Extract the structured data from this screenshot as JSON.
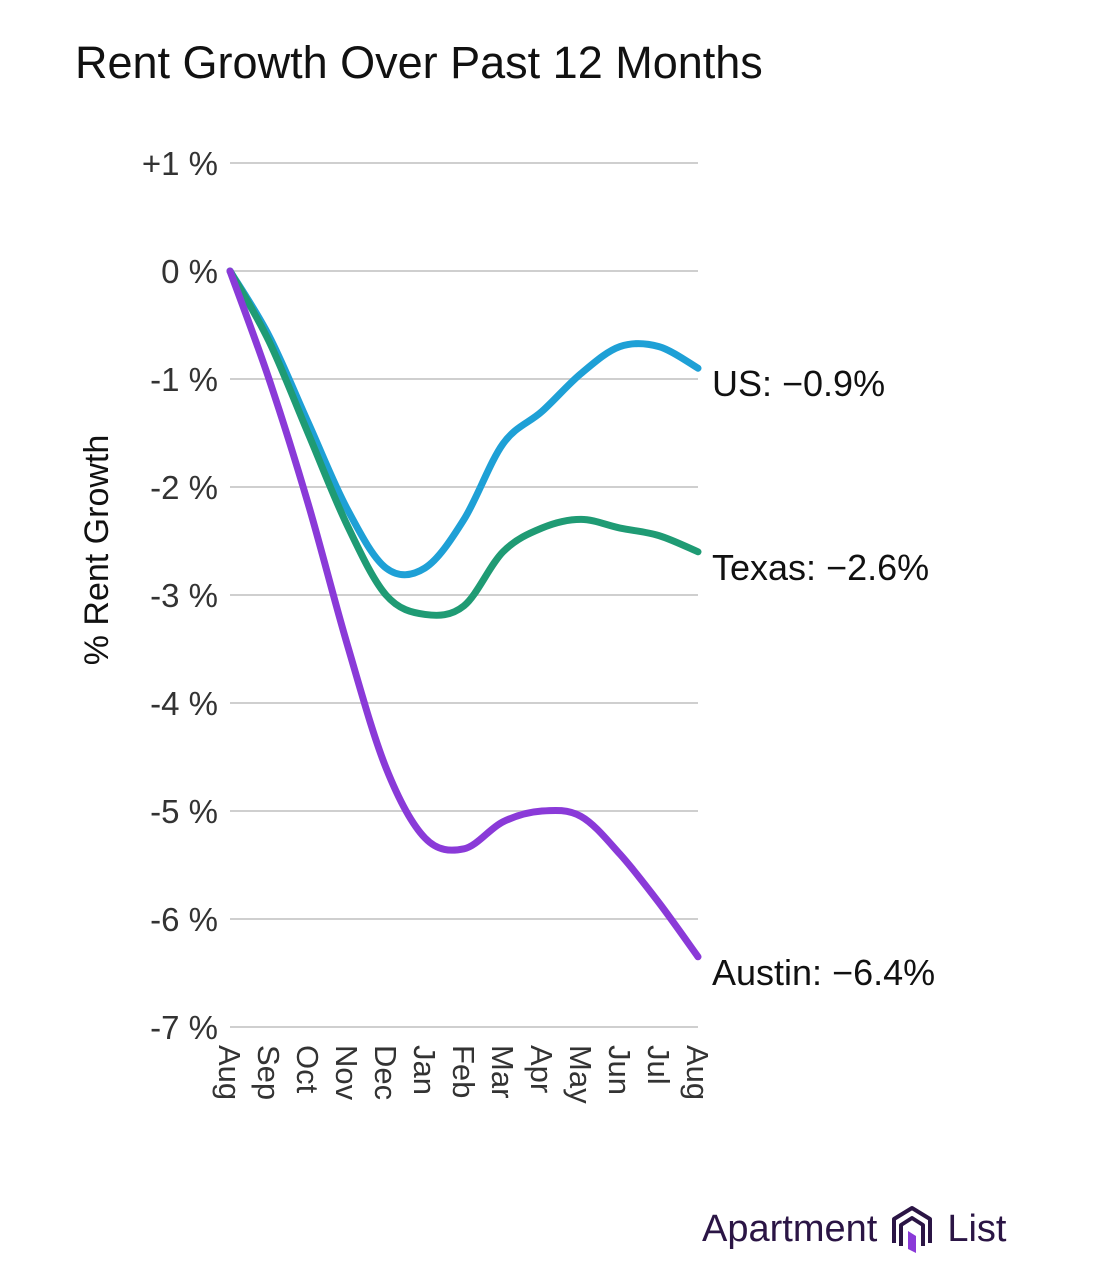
{
  "brand": {
    "name_left": "Apartment",
    "name_right": "List",
    "logo_icon": "apartment-list-logo-icon",
    "color": "#2b1545"
  },
  "chart_data": {
    "type": "line",
    "title": "Rent Growth Over Past 12 Months",
    "xlabel": "",
    "ylabel": "% Rent Growth",
    "x": [
      "Aug",
      "Sep",
      "Oct",
      "Nov",
      "Dec",
      "Jan",
      "Feb",
      "Mar",
      "Apr",
      "May",
      "Jun",
      "Jul",
      "Aug"
    ],
    "ylim": [
      -7,
      1
    ],
    "yticks": [
      1,
      0,
      -1,
      -2,
      -3,
      -4,
      -5,
      -6,
      -7
    ],
    "ytick_labels": [
      "+1 %",
      "0 %",
      "-1 %",
      "-2 %",
      "-3 %",
      "-4 %",
      "-5 %",
      "-6 %",
      "-7 %"
    ],
    "grid": true,
    "series": [
      {
        "name": "US",
        "end_label": "US: −0.9%",
        "color": "#1ea0d6",
        "values": [
          0,
          -0.6,
          -1.4,
          -2.2,
          -2.75,
          -2.75,
          -2.3,
          -1.6,
          -1.3,
          -0.95,
          -0.7,
          -0.7,
          -0.9
        ]
      },
      {
        "name": "Texas",
        "end_label": "Texas: −2.6%",
        "color": "#1f9b74",
        "values": [
          0,
          -0.65,
          -1.5,
          -2.35,
          -3.0,
          -3.18,
          -3.1,
          -2.6,
          -2.38,
          -2.3,
          -2.38,
          -2.45,
          -2.6
        ]
      },
      {
        "name": "Austin",
        "end_label": "Austin: −6.4%",
        "color": "#8a3ad8",
        "values": [
          0,
          -1.0,
          -2.15,
          -3.45,
          -4.6,
          -5.25,
          -5.35,
          -5.1,
          -5.0,
          -5.05,
          -5.4,
          -5.85,
          -6.35
        ]
      }
    ]
  }
}
